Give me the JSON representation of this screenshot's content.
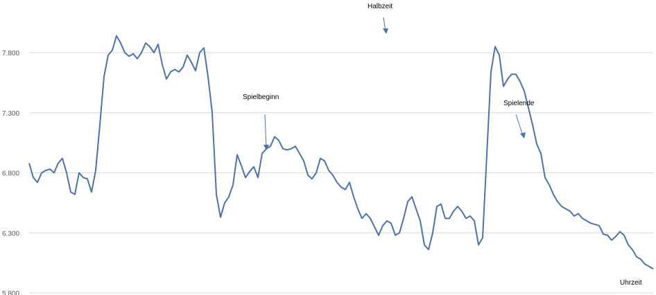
{
  "chart_data": {
    "type": "line",
    "title": "",
    "xlabel": "Uhrzeit",
    "ylabel": "",
    "ylim": [
      5800,
      7900
    ],
    "yticks": [
      5800,
      6300,
      6800,
      7300,
      7800
    ],
    "ytick_labels": [
      "5.800",
      "6.300",
      "6.800",
      "7.300",
      "7.800"
    ],
    "grid": true,
    "legend": "none",
    "x_range": [
      0,
      300
    ],
    "colors": {
      "line": "#4a72b0",
      "grid": "#d9d9d9",
      "arrow": "#4a72b0"
    },
    "series": [
      {
        "x": [
          0,
          2,
          4,
          6,
          8,
          10,
          12,
          14,
          16,
          18,
          20,
          22,
          24,
          26,
          28,
          30,
          32,
          34,
          36,
          38,
          40,
          42,
          44,
          46,
          48,
          50,
          52,
          54,
          56,
          58,
          60,
          62,
          64,
          66,
          68,
          70,
          72,
          74,
          76,
          78,
          80,
          82,
          84,
          86,
          88,
          90,
          92,
          94,
          96,
          98,
          100,
          102,
          104,
          106,
          108,
          110,
          112,
          114,
          116,
          118,
          120,
          122,
          124,
          126,
          128,
          130,
          132,
          134,
          136,
          138,
          140,
          142,
          144,
          146,
          148,
          150,
          152,
          154,
          156,
          158,
          160,
          162,
          164,
          166,
          168,
          170,
          172,
          174,
          176,
          178,
          180,
          182,
          184,
          186,
          188,
          190,
          192,
          194,
          196,
          198,
          200,
          202,
          204,
          206,
          208,
          210,
          212,
          214,
          216,
          218,
          220,
          222,
          224,
          226,
          228,
          230,
          232,
          234,
          236,
          238,
          240,
          242,
          244,
          246,
          248,
          250,
          252,
          254,
          256,
          258,
          260,
          262,
          264,
          266,
          268,
          270,
          272,
          274,
          276,
          278,
          280,
          282,
          284,
          286,
          288,
          290,
          292,
          294,
          296,
          298,
          300
        ],
        "values": [
          6880,
          6760,
          6720,
          6800,
          6820,
          6830,
          6800,
          6880,
          6920,
          6800,
          6640,
          6620,
          6800,
          6760,
          6750,
          6640,
          6820,
          7200,
          7600,
          7780,
          7820,
          7940,
          7880,
          7800,
          7770,
          7790,
          7750,
          7800,
          7880,
          7850,
          7800,
          7870,
          7700,
          7580,
          7640,
          7660,
          7640,
          7680,
          7780,
          7720,
          7650,
          7800,
          7840,
          7600,
          7300,
          6620,
          6430,
          6550,
          6600,
          6700,
          6950,
          6860,
          6760,
          6810,
          6850,
          6760,
          6960,
          7000,
          7020,
          7100,
          7070,
          7000,
          6990,
          7000,
          7020,
          6960,
          6900,
          6780,
          6750,
          6800,
          6920,
          6900,
          6820,
          6780,
          6720,
          6680,
          6660,
          6720,
          6600,
          6500,
          6420,
          6460,
          6420,
          6350,
          6280,
          6360,
          6400,
          6380,
          6280,
          6300,
          6420,
          6560,
          6600,
          6500,
          6400,
          6200,
          6160,
          6300,
          6520,
          6540,
          6420,
          6420,
          6480,
          6520,
          6480,
          6420,
          6440,
          6400,
          6200,
          6260,
          6950,
          7640,
          7850,
          7780,
          7520,
          7580,
          7620,
          7620,
          7560,
          7480,
          7340,
          7200,
          7040,
          6960,
          6760,
          6700,
          6620,
          6560,
          6520,
          6500,
          6480,
          6440,
          6460,
          6420,
          6400,
          6380,
          6370,
          6360,
          6290,
          6280,
          6240,
          6270,
          6310,
          6280,
          6200,
          6160,
          6100,
          6080,
          6040,
          6020,
          6000
        ]
      }
    ]
  },
  "annotations": [
    {
      "label": "Spielbeginn"
    },
    {
      "label": "Halbzeit"
    },
    {
      "label": "Spielende"
    }
  ]
}
